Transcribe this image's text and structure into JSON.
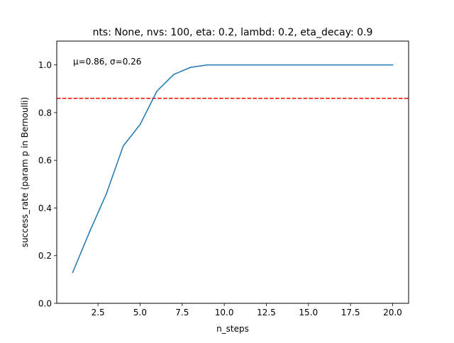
{
  "chart_data": {
    "type": "line",
    "title": "nts: None, nvs: 100, eta: 0.2, lambd: 0.2, eta_decay: 0.9",
    "xlabel": "n_steps",
    "ylabel": "success_rate (param p in Bernoulli)",
    "xlim": [
      0.05,
      20.95
    ],
    "ylim": [
      0.0,
      1.1
    ],
    "x_ticks": [
      2.5,
      5.0,
      7.5,
      10.0,
      12.5,
      15.0,
      17.5,
      20.0
    ],
    "x_tick_labels": [
      "2.5",
      "5.0",
      "7.5",
      "10.0",
      "12.5",
      "15.0",
      "17.5",
      "20.0"
    ],
    "y_ticks": [
      0.0,
      0.2,
      0.4,
      0.6,
      0.8,
      1.0
    ],
    "y_tick_labels": [
      "0.0",
      "0.2",
      "0.4",
      "0.6",
      "0.8",
      "1.0"
    ],
    "grid": false,
    "series": [
      {
        "color": "#1f77b4",
        "x": [
          1,
          2,
          3,
          4,
          5,
          6,
          7,
          8,
          9,
          10,
          11,
          12,
          13,
          14,
          15,
          16,
          17,
          18,
          19,
          20
        ],
        "y": [
          0.13,
          0.3,
          0.46,
          0.66,
          0.75,
          0.89,
          0.96,
          0.99,
          1.0,
          1.0,
          1.0,
          1.0,
          1.0,
          1.0,
          1.0,
          1.0,
          1.0,
          1.0,
          1.0,
          1.0
        ]
      }
    ],
    "mean_line": {
      "y": 0.86,
      "color": "#ff0000",
      "style": "dashed"
    },
    "annotation": "μ=0.86, σ=0.26"
  }
}
